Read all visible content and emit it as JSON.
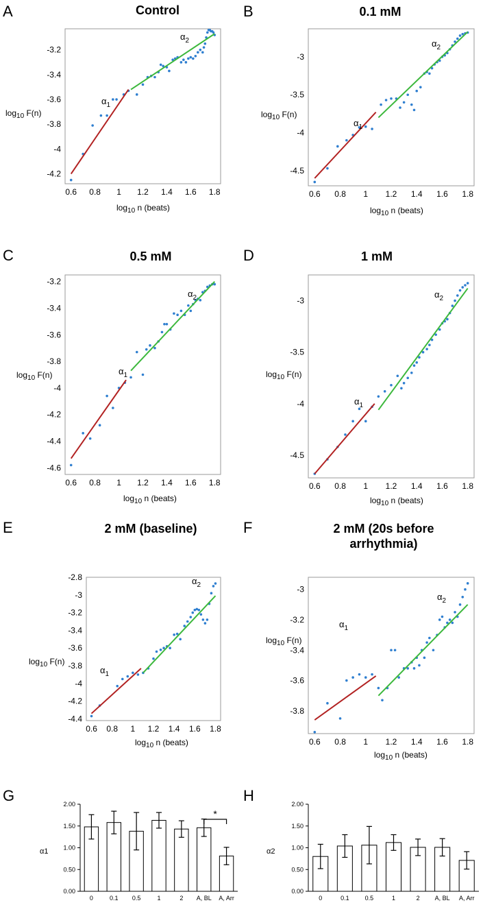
{
  "colors": {
    "fit_short": "#b22222",
    "fit_long": "#3cb83c",
    "points": "#2f7fd0",
    "bar_fill": "#ffffff",
    "bar_stroke": "#000000"
  },
  "labels": {
    "ylabel_prefix": "log",
    "ylabel_sub": "10",
    "ylabel_suffix": " F(n)",
    "xlabel_prefix": "log",
    "xlabel_sub": "10",
    "xlabel_suffix": " n (beats)",
    "alpha1_symbol": "α",
    "alpha1_sub": "1",
    "alpha2_symbol": "α",
    "alpha2_sub": "2"
  },
  "chart_data": [
    {
      "panel": "A",
      "title": "Control",
      "type": "scatter",
      "xlim": [
        0.55,
        1.85
      ],
      "ylim": [
        -4.28,
        -3.03
      ],
      "xticks": [
        "0.6",
        "0.8",
        "1",
        "1.2",
        "1.4",
        "1.6",
        "1.8"
      ],
      "yticks": [
        "-3.2",
        "-3.4",
        "-3.6",
        "-3.8",
        "-4",
        "-4.2"
      ],
      "fit_alpha1": [
        [
          0.6,
          -4.2
        ],
        [
          1.08,
          -3.52
        ]
      ],
      "fit_alpha2": [
        [
          1.1,
          -3.52
        ],
        [
          1.8,
          -3.07
        ]
      ],
      "points": [
        [
          0.6,
          -4.25
        ],
        [
          0.7,
          -4.04
        ],
        [
          0.78,
          -3.81
        ],
        [
          0.85,
          -3.73
        ],
        [
          0.9,
          -3.73
        ],
        [
          0.95,
          -3.6
        ],
        [
          0.98,
          -3.6
        ],
        [
          1.04,
          -3.56
        ],
        [
          1.08,
          -3.53
        ],
        [
          1.15,
          -3.56
        ],
        [
          1.2,
          -3.48
        ],
        [
          1.24,
          -3.42
        ],
        [
          1.27,
          -3.41
        ],
        [
          1.3,
          -3.42
        ],
        [
          1.33,
          -3.38
        ],
        [
          1.35,
          -3.32
        ],
        [
          1.37,
          -3.33
        ],
        [
          1.4,
          -3.34
        ],
        [
          1.42,
          -3.37
        ],
        [
          1.45,
          -3.28
        ],
        [
          1.47,
          -3.27
        ],
        [
          1.49,
          -3.26
        ],
        [
          1.52,
          -3.3
        ],
        [
          1.54,
          -3.28
        ],
        [
          1.56,
          -3.3
        ],
        [
          1.58,
          -3.27
        ],
        [
          1.6,
          -3.26
        ],
        [
          1.62,
          -3.27
        ],
        [
          1.64,
          -3.25
        ],
        [
          1.66,
          -3.22
        ],
        [
          1.68,
          -3.2
        ],
        [
          1.7,
          -3.22
        ],
        [
          1.71,
          -3.18
        ],
        [
          1.72,
          -3.15
        ],
        [
          1.73,
          -3.1
        ],
        [
          1.74,
          -3.06
        ],
        [
          1.75,
          -3.04
        ],
        [
          1.76,
          -3.04
        ],
        [
          1.77,
          -3.05
        ],
        [
          1.78,
          -3.05
        ],
        [
          1.79,
          -3.06
        ],
        [
          1.8,
          -3.08
        ]
      ]
    },
    {
      "panel": "B",
      "title": "0.1 mM",
      "type": "scatter",
      "xlim": [
        0.55,
        1.85
      ],
      "ylim": [
        -4.7,
        -2.63
      ],
      "xticks": [
        "0.6",
        "0.8",
        "1",
        "1.2",
        "1.4",
        "1.6",
        "1.8"
      ],
      "yticks": [
        "-3",
        "-3.5",
        "-4",
        "-4.5"
      ],
      "fit_alpha1": [
        [
          0.6,
          -4.6
        ],
        [
          1.08,
          -3.73
        ]
      ],
      "fit_alpha2": [
        [
          1.1,
          -3.8
        ],
        [
          1.8,
          -2.67
        ]
      ],
      "points": [
        [
          0.6,
          -4.65
        ],
        [
          0.7,
          -4.47
        ],
        [
          0.78,
          -4.18
        ],
        [
          0.85,
          -4.1
        ],
        [
          0.9,
          -4.03
        ],
        [
          0.95,
          -3.93
        ],
        [
          1.0,
          -3.92
        ],
        [
          1.05,
          -3.95
        ],
        [
          1.12,
          -3.63
        ],
        [
          1.16,
          -3.57
        ],
        [
          1.2,
          -3.55
        ],
        [
          1.24,
          -3.55
        ],
        [
          1.27,
          -3.67
        ],
        [
          1.3,
          -3.6
        ],
        [
          1.33,
          -3.5
        ],
        [
          1.36,
          -3.63
        ],
        [
          1.38,
          -3.7
        ],
        [
          1.4,
          -3.45
        ],
        [
          1.43,
          -3.4
        ],
        [
          1.46,
          -3.22
        ],
        [
          1.48,
          -3.2
        ],
        [
          1.5,
          -3.22
        ],
        [
          1.52,
          -3.15
        ],
        [
          1.54,
          -3.1
        ],
        [
          1.56,
          -3.07
        ],
        [
          1.58,
          -3.05
        ],
        [
          1.6,
          -3.0
        ],
        [
          1.62,
          -2.98
        ],
        [
          1.64,
          -2.95
        ],
        [
          1.66,
          -2.9
        ],
        [
          1.68,
          -2.85
        ],
        [
          1.7,
          -2.8
        ],
        [
          1.72,
          -2.76
        ],
        [
          1.74,
          -2.72
        ],
        [
          1.76,
          -2.7
        ],
        [
          1.78,
          -2.69
        ],
        [
          1.8,
          -2.68
        ]
      ]
    },
    {
      "panel": "C",
      "title": "0.5 mM",
      "type": "scatter",
      "xlim": [
        0.55,
        1.85
      ],
      "ylim": [
        -4.65,
        -3.15
      ],
      "xticks": [
        "0.6",
        "0.8",
        "1",
        "1.2",
        "1.4",
        "1.6",
        "1.8"
      ],
      "yticks": [
        "-3.2",
        "-3.4",
        "-3.6",
        "-3.8",
        "-4",
        "-4.2",
        "-4.4",
        "-4.6"
      ],
      "fit_alpha1": [
        [
          0.6,
          -4.53
        ],
        [
          1.06,
          -3.94
        ]
      ],
      "fit_alpha2": [
        [
          1.1,
          -3.87
        ],
        [
          1.8,
          -3.2
        ]
      ],
      "points": [
        [
          0.6,
          -4.58
        ],
        [
          0.7,
          -4.34
        ],
        [
          0.76,
          -4.38
        ],
        [
          0.84,
          -4.28
        ],
        [
          0.9,
          -4.06
        ],
        [
          0.95,
          -4.15
        ],
        [
          1.0,
          -4.0
        ],
        [
          1.05,
          -3.96
        ],
        [
          1.1,
          -3.92
        ],
        [
          1.15,
          -3.73
        ],
        [
          1.2,
          -3.9
        ],
        [
          1.23,
          -3.71
        ],
        [
          1.26,
          -3.68
        ],
        [
          1.3,
          -3.7
        ],
        [
          1.33,
          -3.65
        ],
        [
          1.36,
          -3.58
        ],
        [
          1.38,
          -3.52
        ],
        [
          1.4,
          -3.52
        ],
        [
          1.43,
          -3.56
        ],
        [
          1.46,
          -3.44
        ],
        [
          1.49,
          -3.45
        ],
        [
          1.52,
          -3.42
        ],
        [
          1.55,
          -3.45
        ],
        [
          1.58,
          -3.38
        ],
        [
          1.6,
          -3.42
        ],
        [
          1.62,
          -3.37
        ],
        [
          1.64,
          -3.34
        ],
        [
          1.66,
          -3.33
        ],
        [
          1.68,
          -3.34
        ],
        [
          1.7,
          -3.28
        ],
        [
          1.72,
          -3.27
        ],
        [
          1.74,
          -3.24
        ],
        [
          1.76,
          -3.23
        ],
        [
          1.78,
          -3.22
        ],
        [
          1.8,
          -3.22
        ]
      ]
    },
    {
      "panel": "D",
      "title": "1 mM",
      "type": "scatter",
      "xlim": [
        0.55,
        1.85
      ],
      "ylim": [
        -4.72,
        -2.75
      ],
      "xticks": [
        "0.6",
        "0.8",
        "1",
        "1.2",
        "1.4",
        "1.6",
        "1.8"
      ],
      "yticks": [
        "-3",
        "-3.5",
        "-4",
        "-4.5"
      ],
      "fit_alpha1": [
        [
          0.6,
          -4.68
        ],
        [
          1.07,
          -4.0
        ]
      ],
      "fit_alpha2": [
        [
          1.1,
          -4.06
        ],
        [
          1.8,
          -2.88
        ]
      ],
      "points": [
        [
          0.6,
          -4.68
        ],
        [
          0.7,
          -4.54
        ],
        [
          0.78,
          -4.42
        ],
        [
          0.84,
          -4.3
        ],
        [
          0.9,
          -4.17
        ],
        [
          0.95,
          -4.05
        ],
        [
          1.0,
          -4.17
        ],
        [
          1.05,
          -4.03
        ],
        [
          1.1,
          -3.93
        ],
        [
          1.15,
          -3.88
        ],
        [
          1.2,
          -3.82
        ],
        [
          1.25,
          -3.73
        ],
        [
          1.28,
          -3.85
        ],
        [
          1.3,
          -3.8
        ],
        [
          1.33,
          -3.75
        ],
        [
          1.36,
          -3.7
        ],
        [
          1.38,
          -3.63
        ],
        [
          1.4,
          -3.6
        ],
        [
          1.42,
          -3.55
        ],
        [
          1.45,
          -3.5
        ],
        [
          1.48,
          -3.47
        ],
        [
          1.5,
          -3.43
        ],
        [
          1.52,
          -3.38
        ],
        [
          1.55,
          -3.33
        ],
        [
          1.58,
          -3.28
        ],
        [
          1.6,
          -3.22
        ],
        [
          1.62,
          -3.2
        ],
        [
          1.64,
          -3.18
        ],
        [
          1.66,
          -3.12
        ],
        [
          1.68,
          -3.05
        ],
        [
          1.7,
          -3.0
        ],
        [
          1.72,
          -2.95
        ],
        [
          1.74,
          -2.9
        ],
        [
          1.76,
          -2.87
        ],
        [
          1.78,
          -2.85
        ],
        [
          1.8,
          -2.83
        ]
      ]
    },
    {
      "panel": "E",
      "title": "2 mM (baseline)",
      "type": "scatter",
      "xlim": [
        0.55,
        1.85
      ],
      "ylim": [
        -4.42,
        -2.8
      ],
      "xticks": [
        "0.6",
        "0.8",
        "1",
        "1.2",
        "1.4",
        "1.6",
        "1.8"
      ],
      "yticks": [
        "-2.8",
        "-3",
        "-3.2",
        "-3.4",
        "-3.6",
        "-3.8",
        "-4",
        "-4.2",
        "-4.4"
      ],
      "fit_alpha1": [
        [
          0.6,
          -4.34
        ],
        [
          1.08,
          -3.83
        ]
      ],
      "fit_alpha2": [
        [
          1.1,
          -3.88
        ],
        [
          1.8,
          -3.01
        ]
      ],
      "points": [
        [
          0.6,
          -4.37
        ],
        [
          0.68,
          -4.25
        ],
        [
          0.85,
          -4.03
        ],
        [
          0.9,
          -3.95
        ],
        [
          0.95,
          -3.92
        ],
        [
          1.0,
          -3.88
        ],
        [
          1.05,
          -3.9
        ],
        [
          1.1,
          -3.88
        ],
        [
          1.15,
          -3.83
        ],
        [
          1.2,
          -3.72
        ],
        [
          1.23,
          -3.64
        ],
        [
          1.27,
          -3.62
        ],
        [
          1.3,
          -3.6
        ],
        [
          1.33,
          -3.58
        ],
        [
          1.36,
          -3.6
        ],
        [
          1.4,
          -3.45
        ],
        [
          1.43,
          -3.44
        ],
        [
          1.46,
          -3.5
        ],
        [
          1.5,
          -3.35
        ],
        [
          1.53,
          -3.3
        ],
        [
          1.56,
          -3.25
        ],
        [
          1.58,
          -3.2
        ],
        [
          1.6,
          -3.17
        ],
        [
          1.62,
          -3.16
        ],
        [
          1.64,
          -3.17
        ],
        [
          1.66,
          -3.22
        ],
        [
          1.68,
          -3.28
        ],
        [
          1.7,
          -3.32
        ],
        [
          1.72,
          -3.28
        ],
        [
          1.74,
          -3.1
        ],
        [
          1.76,
          -2.98
        ],
        [
          1.78,
          -2.9
        ],
        [
          1.8,
          -2.87
        ]
      ]
    },
    {
      "panel": "F",
      "title": "2 mM (20s before arrhythmia)",
      "type": "scatter",
      "xlim": [
        0.55,
        1.85
      ],
      "ylim": [
        -3.95,
        -2.92
      ],
      "xticks": [
        "0.6",
        "0.8",
        "1",
        "1.2",
        "1.4",
        "1.6",
        "1.8"
      ],
      "yticks": [
        "-3",
        "-3.2",
        "-3.4",
        "-3.6",
        "-3.8"
      ],
      "fit_alpha1": [
        [
          0.6,
          -3.86
        ],
        [
          1.08,
          -3.57
        ]
      ],
      "fit_alpha2": [
        [
          1.1,
          -3.7
        ],
        [
          1.8,
          -3.1
        ]
      ],
      "points": [
        [
          0.6,
          -3.94
        ],
        [
          0.7,
          -3.75
        ],
        [
          0.8,
          -3.85
        ],
        [
          0.85,
          -3.6
        ],
        [
          0.9,
          -3.58
        ],
        [
          0.95,
          -3.56
        ],
        [
          1.0,
          -3.58
        ],
        [
          1.05,
          -3.56
        ],
        [
          1.1,
          -3.65
        ],
        [
          1.13,
          -3.73
        ],
        [
          1.17,
          -3.65
        ],
        [
          1.2,
          -3.4
        ],
        [
          1.23,
          -3.4
        ],
        [
          1.26,
          -3.58
        ],
        [
          1.3,
          -3.52
        ],
        [
          1.33,
          -3.52
        ],
        [
          1.36,
          -3.48
        ],
        [
          1.38,
          -3.52
        ],
        [
          1.4,
          -3.45
        ],
        [
          1.42,
          -3.5
        ],
        [
          1.44,
          -3.4
        ],
        [
          1.46,
          -3.45
        ],
        [
          1.48,
          -3.35
        ],
        [
          1.5,
          -3.32
        ],
        [
          1.53,
          -3.4
        ],
        [
          1.56,
          -3.3
        ],
        [
          1.58,
          -3.2
        ],
        [
          1.6,
          -3.18
        ],
        [
          1.62,
          -3.25
        ],
        [
          1.64,
          -3.22
        ],
        [
          1.66,
          -3.2
        ],
        [
          1.68,
          -3.22
        ],
        [
          1.7,
          -3.15
        ],
        [
          1.72,
          -3.18
        ],
        [
          1.74,
          -3.1
        ],
        [
          1.76,
          -3.05
        ],
        [
          1.78,
          -3.0
        ],
        [
          1.8,
          -2.96
        ]
      ]
    },
    {
      "panel": "G",
      "title": "",
      "type": "bar",
      "ylabel": "α1",
      "ylim": [
        0,
        2
      ],
      "yticks": [
        "2.00",
        "1.50",
        "1.00",
        "0.50",
        "0.00"
      ],
      "categories": [
        "0",
        "0.1",
        "0.5",
        "1",
        "2",
        "A, BL",
        "A, Arr"
      ],
      "values": [
        1.48,
        1.58,
        1.38,
        1.63,
        1.43,
        1.46,
        0.81
      ],
      "errors": [
        0.28,
        0.26,
        0.43,
        0.18,
        0.19,
        0.2,
        0.2
      ],
      "significance": {
        "label": "*",
        "between": [
          5,
          6
        ]
      }
    },
    {
      "panel": "H",
      "title": "",
      "type": "bar",
      "ylabel": "α2",
      "ylim": [
        0,
        2
      ],
      "yticks": [
        "2.00",
        "1.50",
        "1.00",
        "0.50",
        "0.00"
      ],
      "categories": [
        "0",
        "0.1",
        "0.5",
        "1",
        "2",
        "A, BL",
        "A, Arr"
      ],
      "values": [
        0.8,
        1.04,
        1.06,
        1.12,
        1.01,
        1.01,
        0.71
      ],
      "errors": [
        0.28,
        0.26,
        0.43,
        0.18,
        0.19,
        0.2,
        0.2
      ]
    }
  ]
}
